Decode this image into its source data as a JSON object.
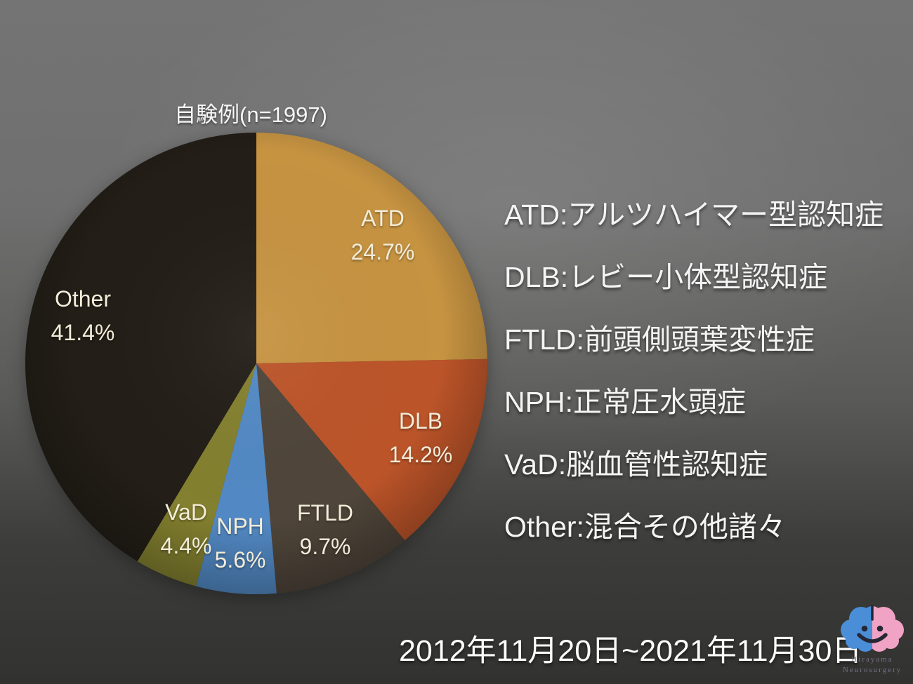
{
  "chart_data": {
    "type": "pie",
    "title": "自験例(n=1997)",
    "n": 1997,
    "unit": "%",
    "start_angle_deg": 0,
    "direction": "clockwise",
    "label_text_color": "#f2ecd9",
    "slices": [
      {
        "label": "ATD",
        "value": 24.7,
        "color": "#c69341"
      },
      {
        "label": "DLB",
        "value": 14.2,
        "color": "#bc5429"
      },
      {
        "label": "FTLD",
        "value": 9.7,
        "color": "#4f453a"
      },
      {
        "label": "NPH",
        "value": 5.6,
        "color": "#5289c4"
      },
      {
        "label": "VaD",
        "value": 4.4,
        "color": "#83802f"
      },
      {
        "label": "Other",
        "value": 41.4,
        "color": "#231e17"
      }
    ]
  },
  "legend": {
    "items": [
      "ATD:アルツハイマー型認知症",
      "DLB:レビー小体型認知症",
      "FTLD:前頭側頭葉変性症",
      "NPH:正常圧水頭症",
      "VaD:脳血管性認知症",
      "Other:混合その他諸々"
    ]
  },
  "footer": {
    "date_range": "2012年11月20日~2021年11月30日"
  },
  "logo": {
    "line1": "Hirayama",
    "line2": "Neurosurgery",
    "brain_left_color": "#4a8ed8",
    "brain_right_color": "#f0a3c4",
    "face_color": "#262634"
  }
}
